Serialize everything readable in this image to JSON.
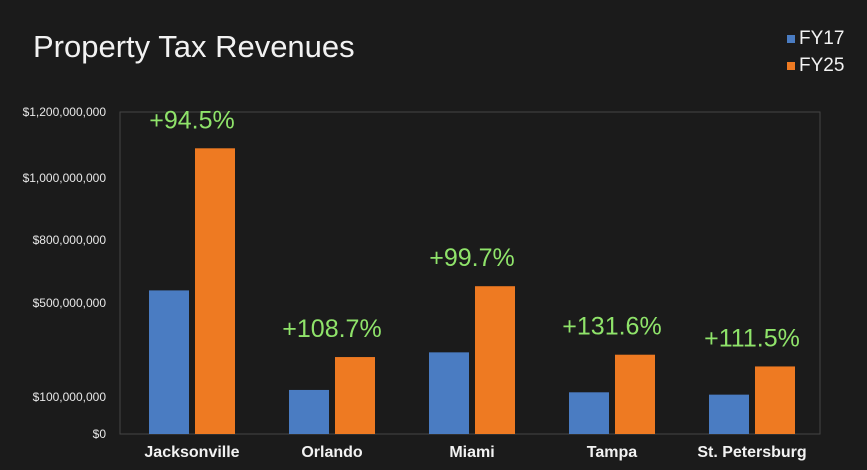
{
  "chart_data": {
    "type": "bar",
    "title": "Property Tax Revenues",
    "categories": [
      "Jacksonville",
      "Orlando",
      "Miami",
      "Tampa",
      "St. Petersburg"
    ],
    "series": [
      {
        "name": "FY17",
        "color": "#4a7cc2",
        "values": [
          560000000,
          130000000,
          290000000,
          120000000,
          110000000
        ]
      },
      {
        "name": "FY25",
        "color": "#ee7a22",
        "values": [
          1090000000,
          270000000,
          580000000,
          280000000,
          230000000
        ]
      }
    ],
    "annotations": [
      "+94.5%",
      "+108.7%",
      "+99.7%",
      "+131.6%",
      "+111.5%"
    ],
    "annotation_color": "#8fe36a",
    "ytick_values": [
      0,
      100000000,
      500000000,
      800000000,
      1000000000,
      1200000000
    ],
    "ytick_labels": [
      "$0",
      "$100,000,000",
      "$500,000,000",
      "$800,000,000",
      "$1,000,000,000",
      "$1,200,000,000"
    ],
    "ylim": [
      0,
      1200000000
    ],
    "xlabel": "",
    "ylabel": "",
    "legend_position": "top-right",
    "grid": false
  }
}
